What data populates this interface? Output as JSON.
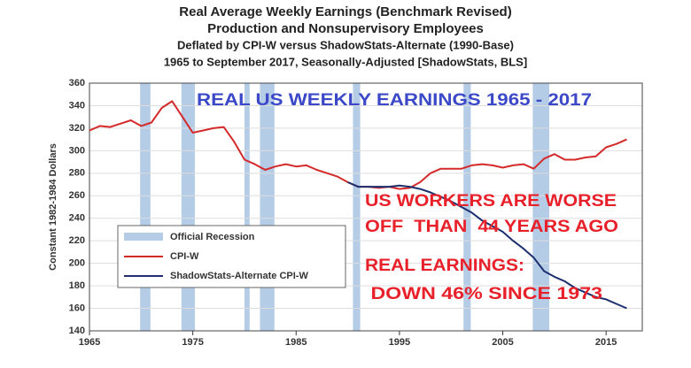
{
  "chart_data": {
    "type": "line",
    "title": "Real Average Weekly Earnings (Benchmark Revised)",
    "subtitle": [
      "Production and Nonsupervisory Employees",
      "Deflated by CPI-W versus ShadowStats-Alternate (1990-Base)",
      "1965 to September 2017, Seasonally-Adjusted [ShadowStats, BLS]"
    ],
    "y_label": "Constant 1982-1984 Dollars",
    "x": [
      1965,
      1966,
      1967,
      1968,
      1969,
      1970,
      1971,
      1972,
      1973,
      1974,
      1975,
      1976,
      1977,
      1978,
      1979,
      1980,
      1981,
      1982,
      1983,
      1984,
      1985,
      1986,
      1987,
      1988,
      1989,
      1990,
      1991,
      1992,
      1993,
      1994,
      1995,
      1996,
      1997,
      1998,
      1999,
      2000,
      2001,
      2002,
      2003,
      2004,
      2005,
      2006,
      2007,
      2008,
      2009,
      2010,
      2011,
      2012,
      2013,
      2014,
      2015,
      2016,
      2017
    ],
    "series": [
      {
        "name": "CPI-W",
        "color": "#d42a2a",
        "values": [
          318,
          322,
          321,
          324,
          327,
          322,
          325,
          338,
          344,
          330,
          316,
          318,
          320,
          321,
          308,
          292,
          288,
          283,
          286,
          288,
          286,
          287,
          283,
          280,
          277,
          272,
          268,
          268,
          267,
          268,
          266,
          267,
          272,
          280,
          284,
          284,
          284,
          287,
          288,
          287,
          285,
          287,
          288,
          284,
          293,
          297,
          292,
          292,
          294,
          295,
          303,
          306,
          310
        ]
      },
      {
        "name": "ShadowStats-Alternate CPI-W",
        "color": "#1c2f6e",
        "values": [
          null,
          null,
          null,
          null,
          null,
          null,
          null,
          null,
          null,
          null,
          null,
          null,
          null,
          null,
          null,
          null,
          null,
          null,
          null,
          null,
          null,
          null,
          null,
          null,
          null,
          272,
          268,
          268,
          268,
          268,
          269,
          268,
          266,
          263,
          259,
          255,
          250,
          245,
          238,
          233,
          228,
          220,
          213,
          205,
          193,
          188,
          184,
          178,
          174,
          170,
          168,
          164,
          160
        ]
      }
    ],
    "recession_name": "Official Recession",
    "recession_color": "#b4cce6",
    "recessions": [
      [
        1969.9,
        1970.9
      ],
      [
        1973.9,
        1975.2
      ],
      [
        1980.0,
        1980.5
      ],
      [
        1981.5,
        1982.9
      ],
      [
        1990.5,
        1991.2
      ],
      [
        2001.2,
        2001.9
      ],
      [
        2007.9,
        2009.5
      ]
    ],
    "xlim": [
      1965,
      2018.5
    ],
    "xticks": [
      1965,
      1975,
      1985,
      1995,
      2005,
      2015
    ],
    "ylim": [
      140,
      360
    ],
    "yticks": [
      140,
      160,
      180,
      200,
      220,
      240,
      260,
      280,
      300,
      320,
      340,
      360
    ],
    "grid": true,
    "annotations": [
      {
        "text": "REAL US WEEKLY EARNINGS 1965 - 2017",
        "color": "#3b48c8"
      },
      {
        "text": "US WORKERS ARE WORSE",
        "color": "#e8202a"
      },
      {
        "text": "OFF  THAN  44 YEARS AGO",
        "color": "#e8202a"
      },
      {
        "text": "REAL EARNINGS:",
        "color": "#e8202a"
      },
      {
        "text": " DOWN 46% SINCE 1973",
        "color": "#e8202a"
      }
    ]
  }
}
